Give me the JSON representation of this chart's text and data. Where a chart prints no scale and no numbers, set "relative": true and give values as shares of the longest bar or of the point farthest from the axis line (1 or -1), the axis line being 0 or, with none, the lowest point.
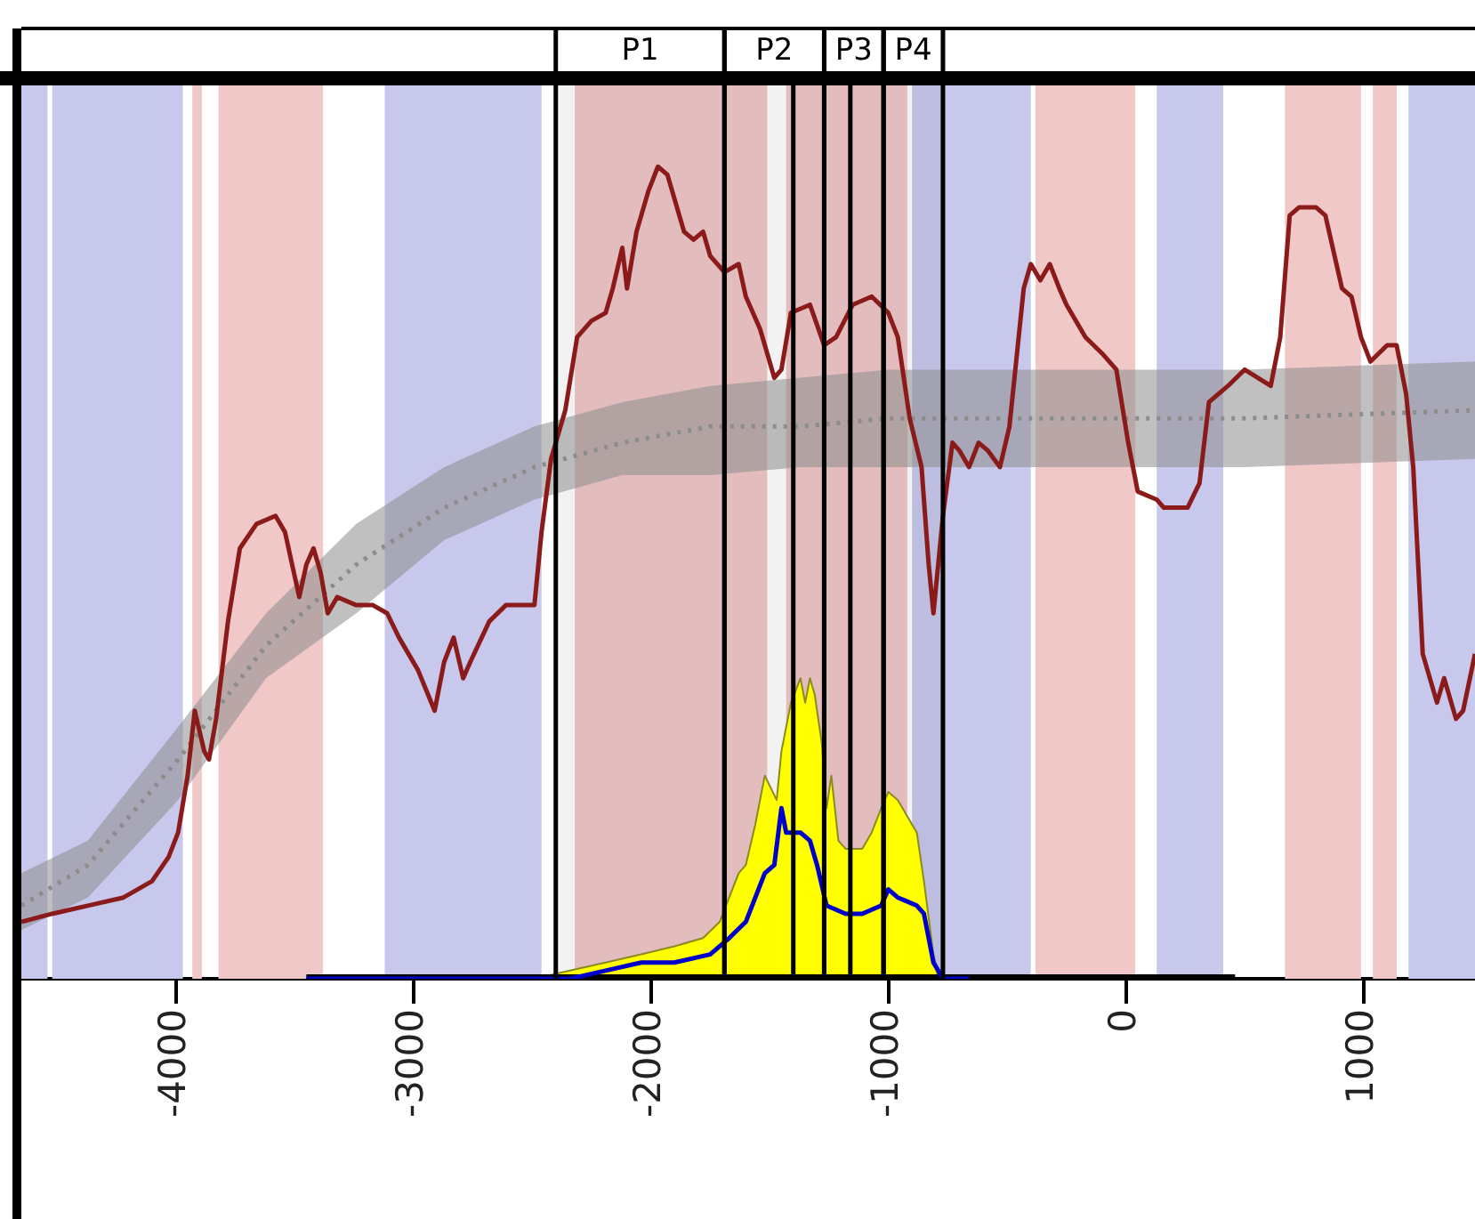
{
  "chart_data": {
    "type": "line",
    "relative": true,
    "xlim": [
      -4650,
      1470
    ],
    "xticks": [
      -4000,
      -3000,
      -2000,
      -1000,
      0,
      1000
    ],
    "series": [
      {
        "color": "#8b1a1a",
        "x": [
          -4650,
          -4520,
          -4370,
          -4220,
          -4100,
          -4030,
          -3990,
          -3950,
          -3920,
          -3880,
          -3860,
          -3830,
          -3780,
          -3730,
          -3660,
          -3580,
          -3540,
          -3480,
          -3450,
          -3420,
          -3390,
          -3360,
          -3320,
          -3240,
          -3170,
          -3110,
          -3060,
          -2980,
          -2910,
          -2870,
          -2830,
          -2790,
          -2760,
          -2680,
          -2610,
          -2490,
          -2460,
          -2420,
          -2360,
          -2310,
          -2250,
          -2190,
          -2160,
          -2120,
          -2100,
          -2060,
          -2010,
          -1970,
          -1930,
          -1900,
          -1860,
          -1820,
          -1780,
          -1750,
          -1690,
          -1630,
          -1600,
          -1540,
          -1480,
          -1450,
          -1410,
          -1330,
          -1270,
          -1220,
          -1150,
          -1070,
          -1000,
          -960,
          -910,
          -860,
          -830,
          -810,
          -770,
          -730,
          -700,
          -660,
          -620,
          -580,
          -530,
          -490,
          -430,
          -400,
          -360,
          -320,
          -280,
          -250,
          -170,
          -100,
          -40,
          10,
          50,
          130,
          160,
          200,
          260,
          310,
          350,
          430,
          500,
          610,
          650,
          690,
          730,
          800,
          840,
          910,
          950,
          990,
          1030,
          1100,
          1140,
          1180,
          1210,
          1250,
          1310,
          1340,
          1390,
          1420,
          1470
        ],
        "values": [
          0.07,
          0.08,
          0.09,
          0.1,
          0.12,
          0.15,
          0.18,
          0.25,
          0.33,
          0.28,
          0.27,
          0.32,
          0.44,
          0.53,
          0.56,
          0.57,
          0.55,
          0.47,
          0.51,
          0.53,
          0.5,
          0.45,
          0.47,
          0.46,
          0.46,
          0.45,
          0.42,
          0.38,
          0.33,
          0.39,
          0.42,
          0.37,
          0.39,
          0.44,
          0.46,
          0.46,
          0.55,
          0.64,
          0.7,
          0.79,
          0.81,
          0.82,
          0.85,
          0.9,
          0.85,
          0.92,
          0.97,
          1.0,
          0.99,
          0.96,
          0.92,
          0.91,
          0.92,
          0.89,
          0.87,
          0.88,
          0.84,
          0.8,
          0.74,
          0.75,
          0.82,
          0.83,
          0.78,
          0.79,
          0.83,
          0.84,
          0.82,
          0.79,
          0.69,
          0.63,
          0.51,
          0.45,
          0.57,
          0.66,
          0.65,
          0.63,
          0.66,
          0.65,
          0.63,
          0.68,
          0.85,
          0.88,
          0.86,
          0.88,
          0.85,
          0.83,
          0.79,
          0.77,
          0.75,
          0.66,
          0.6,
          0.59,
          0.58,
          0.58,
          0.58,
          0.61,
          0.71,
          0.73,
          0.75,
          0.73,
          0.79,
          0.94,
          0.95,
          0.95,
          0.94,
          0.85,
          0.84,
          0.79,
          0.76,
          0.78,
          0.78,
          0.72,
          0.63,
          0.4,
          0.34,
          0.37,
          0.32,
          0.33,
          0.4
        ]
      },
      {
        "type": "line",
        "color": "#8c8c8c",
        "line_style": "dotted",
        "x": [
          -4650,
          -4370,
          -3990,
          -3620,
          -3240,
          -2870,
          -2490,
          -2120,
          -1750,
          -1370,
          -1000,
          -250,
          500,
          1470
        ],
        "values": [
          0.09,
          0.14,
          0.27,
          0.41,
          0.51,
          0.58,
          0.63,
          0.66,
          0.68,
          0.68,
          0.69,
          0.69,
          0.69,
          0.7
        ],
        "lower": [
          0.06,
          0.1,
          0.22,
          0.37,
          0.45,
          0.54,
          0.59,
          0.62,
          0.62,
          0.63,
          0.63,
          0.63,
          0.63,
          0.64
        ],
        "upper": [
          0.13,
          0.17,
          0.31,
          0.45,
          0.56,
          0.63,
          0.68,
          0.71,
          0.73,
          0.74,
          0.75,
          0.75,
          0.75,
          0.76
        ]
      },
      {
        "type": "area",
        "color": "#ffff00",
        "x": [
          -3450,
          -2490,
          -2340,
          -2190,
          -2040,
          -1900,
          -1780,
          -1710,
          -1670,
          -1630,
          -1600,
          -1560,
          -1520,
          -1470,
          -1450,
          -1410,
          -1370,
          -1350,
          -1330,
          -1310,
          -1280,
          -1260,
          -1240,
          -1210,
          -1180,
          -1150,
          -1110,
          -1070,
          -1030,
          -1000,
          -960,
          -920,
          -880,
          -850,
          -810,
          -790,
          -660
        ],
        "values": [
          0,
          0,
          0.01,
          0.02,
          0.03,
          0.04,
          0.05,
          0.07,
          0.1,
          0.13,
          0.14,
          0.19,
          0.25,
          0.22,
          0.28,
          0.34,
          0.37,
          0.34,
          0.37,
          0.35,
          0.29,
          0.21,
          0.25,
          0.17,
          0.16,
          0.16,
          0.16,
          0.18,
          0.21,
          0.23,
          0.22,
          0.2,
          0.18,
          0.12,
          0.03,
          0,
          0
        ]
      },
      {
        "type": "line",
        "color": "#0000cc",
        "x": [
          -3450,
          -2340,
          -2190,
          -2040,
          -1900,
          -1750,
          -1670,
          -1600,
          -1520,
          -1480,
          -1450,
          -1430,
          -1370,
          -1330,
          -1300,
          -1260,
          -1180,
          -1110,
          -1030,
          -1000,
          -960,
          -880,
          -850,
          -810,
          -770,
          -660
        ],
        "values": [
          0,
          0,
          0.01,
          0.02,
          0.02,
          0.03,
          0.05,
          0.07,
          0.13,
          0.14,
          0.21,
          0.18,
          0.18,
          0.17,
          0.14,
          0.09,
          0.08,
          0.08,
          0.09,
          0.11,
          0.1,
          0.09,
          0.08,
          0.02,
          0,
          0
        ]
      },
      {
        "type": "line",
        "color": "#000000",
        "x": [
          -3450,
          460
        ],
        "values": [
          0,
          0
        ]
      }
    ],
    "bands": [
      {
        "axis": "x",
        "from": -4650,
        "to": -4540,
        "color": "#c8c8ec"
      },
      {
        "axis": "x",
        "from": -4520,
        "to": -3970,
        "color": "#c8c8ec"
      },
      {
        "axis": "x",
        "from": -3930,
        "to": -3890,
        "color": "#f0c8c8"
      },
      {
        "axis": "x",
        "from": -3820,
        "to": -3380,
        "color": "#f0c8c8"
      },
      {
        "axis": "x",
        "from": -3120,
        "to": -2460,
        "color": "#c8c8ec"
      },
      {
        "axis": "x",
        "from": -2320,
        "to": -1510,
        "color": "#f0c8c8"
      },
      {
        "axis": "x",
        "from": -1430,
        "to": -920,
        "color": "#f0c8c8"
      },
      {
        "axis": "x",
        "from": -900,
        "to": -400,
        "color": "#c8c8ec"
      },
      {
        "axis": "x",
        "from": -380,
        "to": 40,
        "color": "#f0c8c8"
      },
      {
        "axis": "x",
        "from": 130,
        "to": 410,
        "color": "#c8c8ec"
      },
      {
        "axis": "x",
        "from": 670,
        "to": 990,
        "color": "#f0c8c8"
      },
      {
        "axis": "x",
        "from": 1040,
        "to": 1140,
        "color": "#f0c8c8"
      },
      {
        "axis": "x",
        "from": 1190,
        "to": 1470,
        "color": "#c8c8ec"
      },
      {
        "axis": "x",
        "from": -2400,
        "to": -1690,
        "label": "P1"
      },
      {
        "axis": "x",
        "from": -1690,
        "to": -1270,
        "label": "P2"
      },
      {
        "axis": "x",
        "from": -1270,
        "to": -1020,
        "label": "P3"
      },
      {
        "axis": "x",
        "from": -1020,
        "to": -770,
        "label": "P4"
      }
    ],
    "ref_lines": [
      {
        "axis": "x",
        "value": -1400
      },
      {
        "axis": "x",
        "value": -1160
      }
    ]
  }
}
